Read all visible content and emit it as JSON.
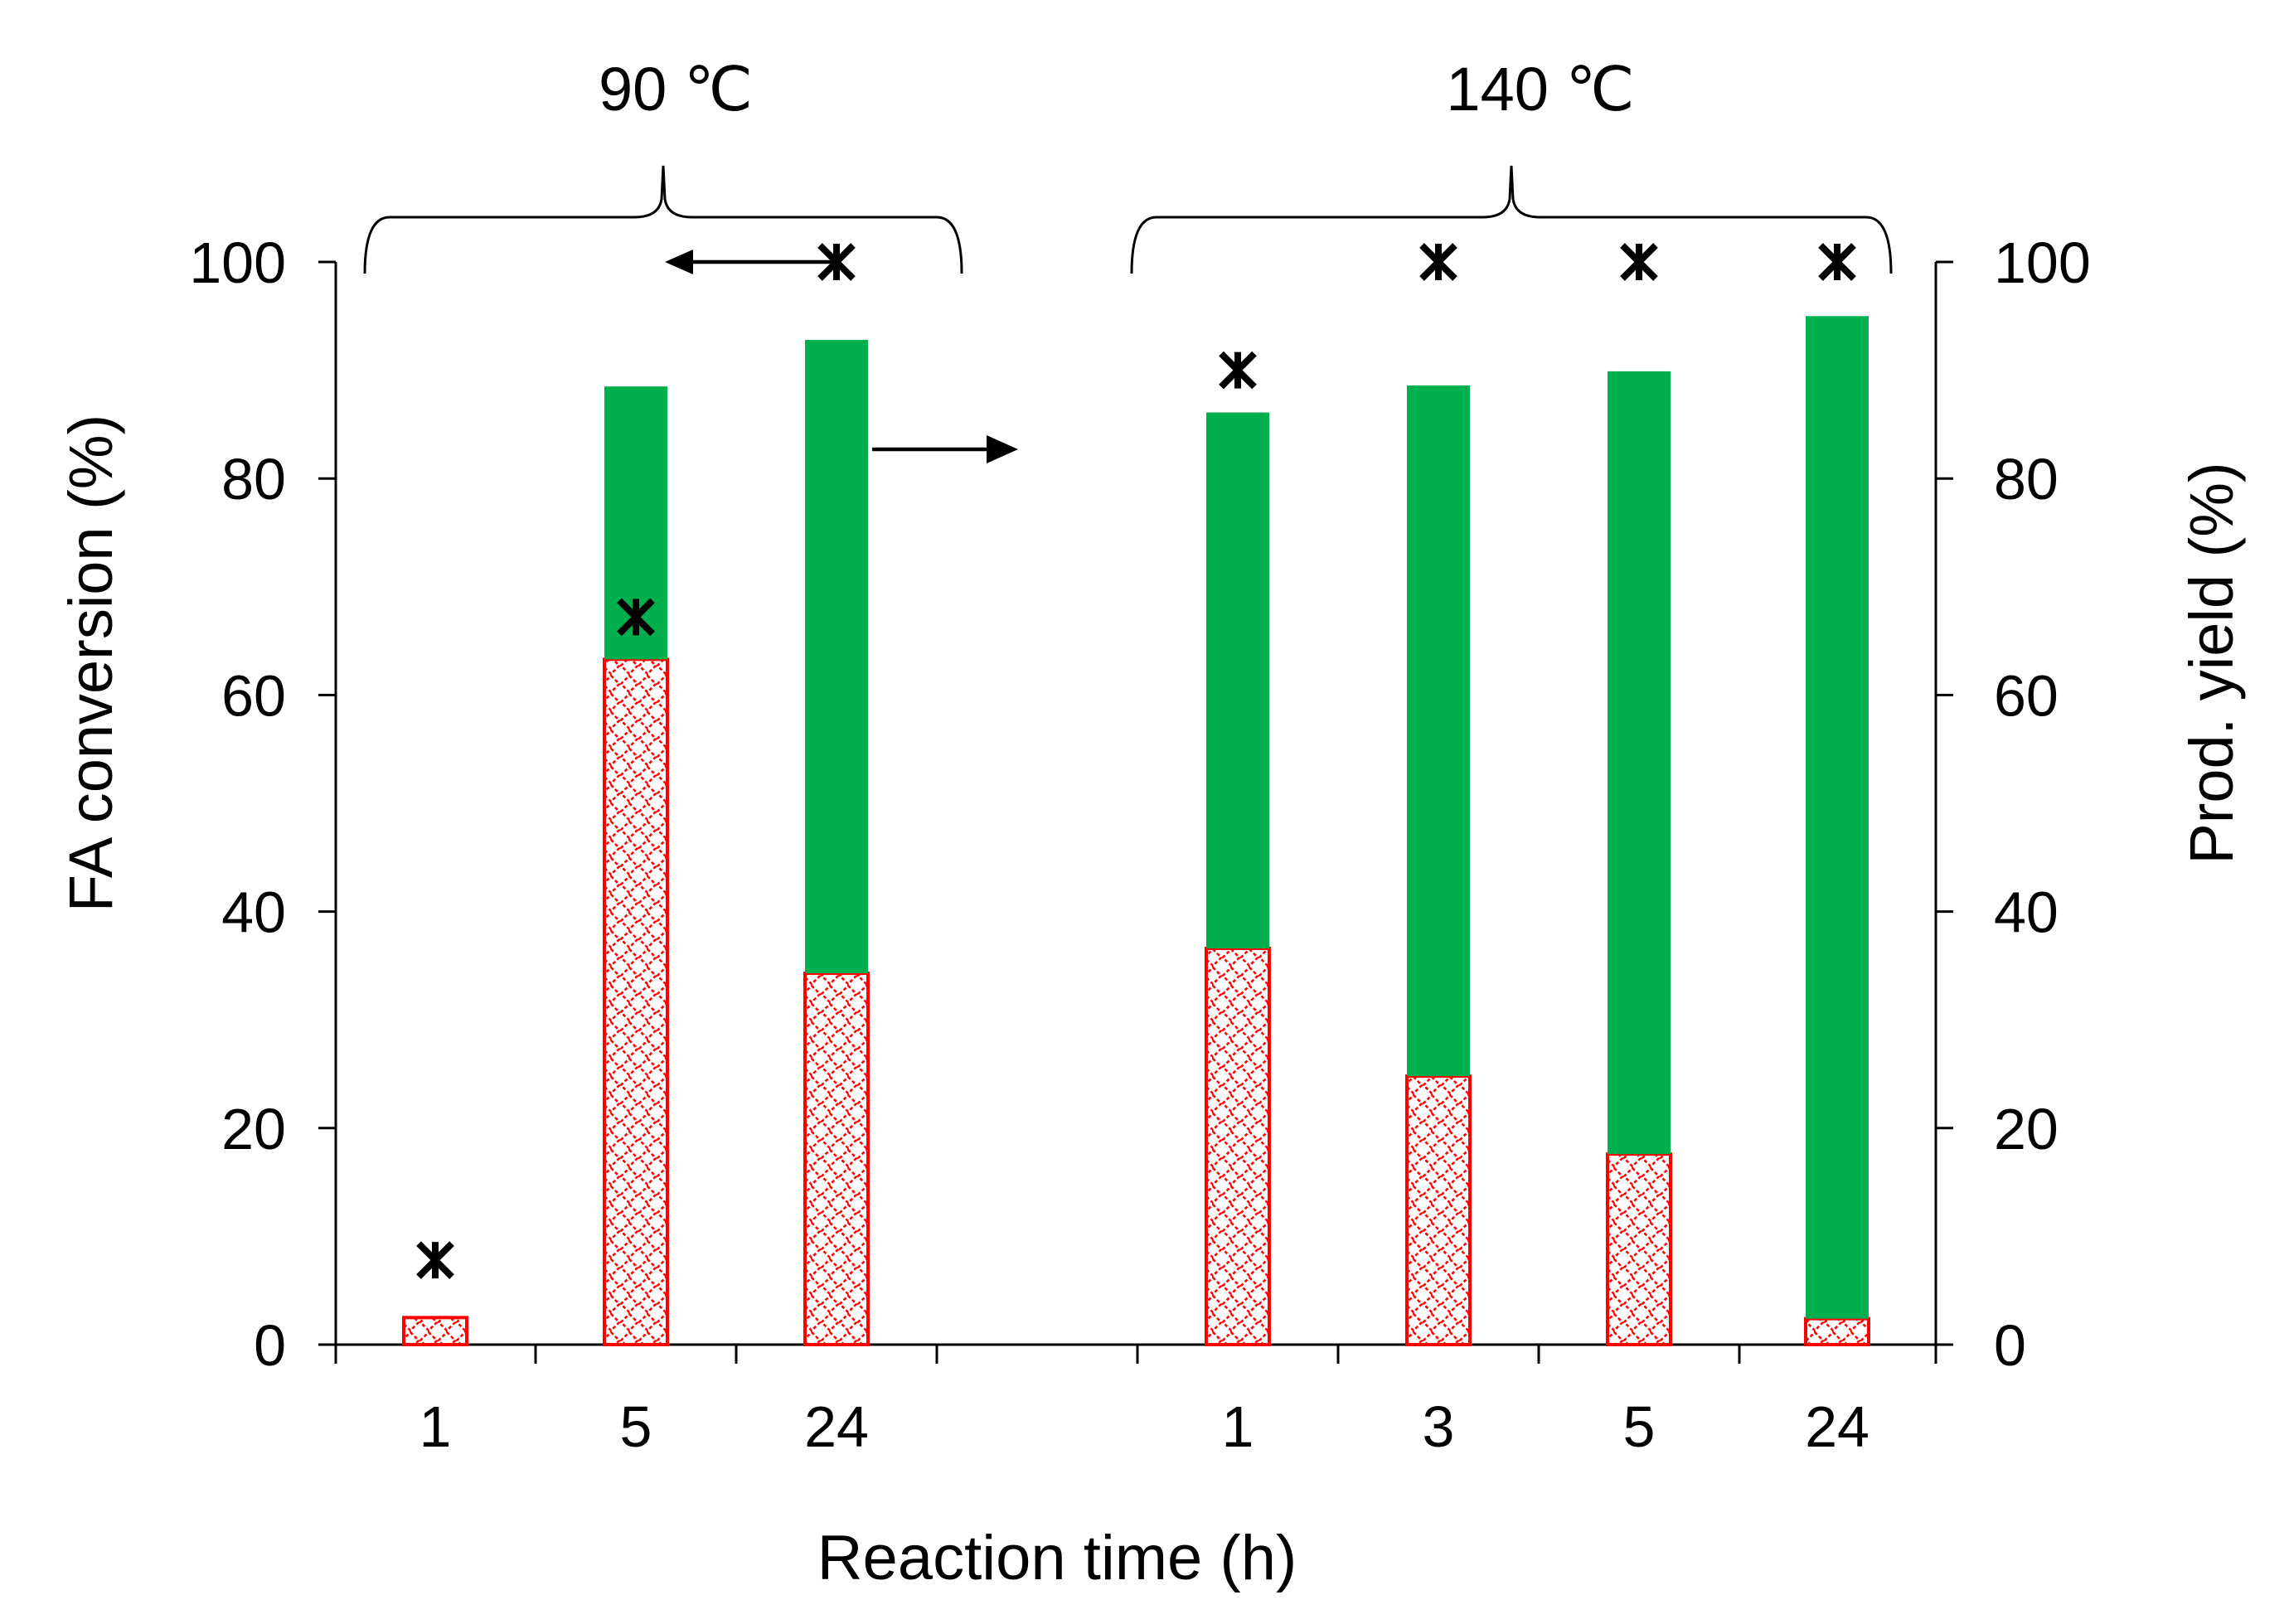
{
  "chart_data": {
    "type": "bar",
    "xlabel": "Reaction time (h)",
    "ylabel_left": "FA conversion (%)",
    "ylabel_right": "Prod. yield (%)",
    "ylim": [
      0,
      100
    ],
    "yticks": [
      0,
      20,
      40,
      60,
      80,
      100
    ],
    "ytick_labels": [
      "0",
      "20",
      "40",
      "60",
      "80",
      "100"
    ],
    "colors": {
      "green": "#00b04f",
      "red": "#ff0000",
      "marker": "#000000"
    },
    "groups": [
      {
        "label": "90 ℃",
        "categories": [
          "1",
          "5",
          "24"
        ],
        "series": [
          {
            "name": "red hatched segment (prod. yield)",
            "style": "red-hatched",
            "values": [
              2.5,
              63.3,
              34.3
            ]
          },
          {
            "name": "green segment (prod. yield)",
            "style": "green",
            "values": [
              0,
              25.2,
              58.5
            ]
          }
        ],
        "conversion_markers": [
          7.8,
          67.2,
          100
        ]
      },
      {
        "label": "140 ℃",
        "categories": [
          "1",
          "3",
          "5",
          "24"
        ],
        "series": [
          {
            "name": "red hatched segment (prod. yield)",
            "style": "red-hatched",
            "values": [
              36.6,
              24.8,
              17.6,
              2.4
            ]
          },
          {
            "name": "green segment (prod. yield)",
            "style": "green",
            "values": [
              49.5,
              63.8,
              72.3,
              92.6
            ]
          }
        ],
        "conversion_markers": [
          90,
          100,
          100,
          100
        ]
      }
    ],
    "annotations": [
      {
        "type": "arrow",
        "direction": "left",
        "meaning": "points to FA conversion axis"
      },
      {
        "type": "arrow",
        "direction": "right",
        "meaning": "points to Prod. yield axis"
      }
    ]
  }
}
